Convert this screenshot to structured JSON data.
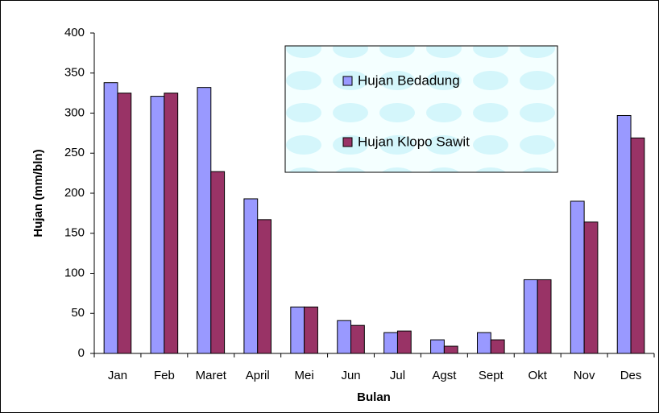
{
  "chart_data": {
    "type": "bar",
    "x_label": "Bulan",
    "y_label": "Hujan (mm/bln)",
    "categories": [
      "Jan",
      "Feb",
      "Maret",
      "April",
      "Mei",
      "Jun",
      "Jul",
      "Agst",
      "Sept",
      "Okt",
      "Nov",
      "Des"
    ],
    "series": [
      {
        "name": "Hujan Bedadung",
        "color": "#9999ff",
        "values": [
          338,
          321,
          332,
          193,
          58,
          41,
          26,
          17,
          26,
          92,
          190,
          297
        ]
      },
      {
        "name": "Hujan Klopo Sawit",
        "color": "#993366",
        "values": [
          325,
          325,
          227,
          167,
          58,
          35,
          28,
          9,
          17,
          92,
          164,
          269
        ]
      }
    ],
    "ylim": [
      0,
      400
    ],
    "yticks": [
      0,
      50,
      100,
      150,
      200,
      250,
      300,
      350,
      400
    ],
    "grid": false,
    "legend": "top-right"
  }
}
